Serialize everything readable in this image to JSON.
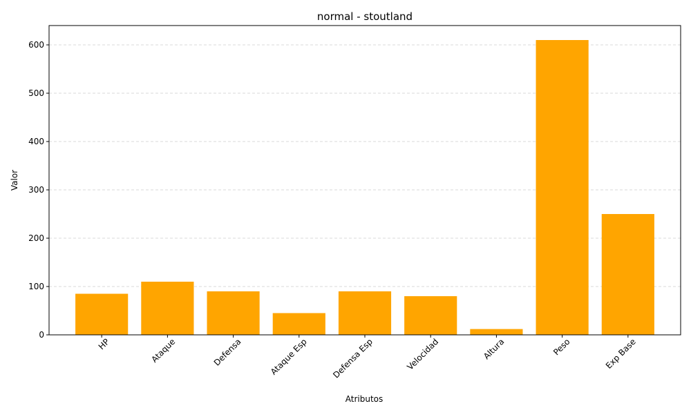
{
  "chart_data": {
    "type": "bar",
    "title": "normal - stoutland",
    "xlabel": "Atributos",
    "ylabel": "Valor",
    "categories": [
      "HP",
      "Ataque",
      "Defensa",
      "Ataque Esp",
      "Defensa Esp",
      "Velocidad",
      "Altura",
      "Peso",
      "Exp Base"
    ],
    "values": [
      85,
      110,
      90,
      45,
      90,
      80,
      12,
      610,
      250
    ],
    "ylim": [
      0,
      640
    ],
    "yticks": [
      0,
      100,
      200,
      300,
      400,
      500,
      600
    ],
    "grid": "y-dashed",
    "bar_color": "#ffa500",
    "grid_color": "#cccccc",
    "axis_color": "#000000"
  }
}
